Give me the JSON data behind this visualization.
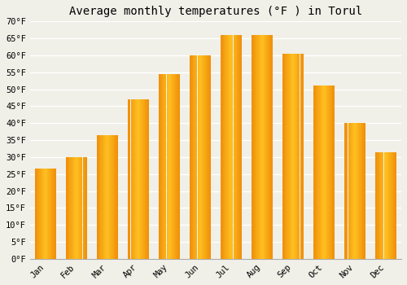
{
  "title": "Average monthly temperatures (°F ) in Torul",
  "months": [
    "Jan",
    "Feb",
    "Mar",
    "Apr",
    "May",
    "Jun",
    "Jul",
    "Aug",
    "Sep",
    "Oct",
    "Nov",
    "Dec"
  ],
  "values": [
    26.5,
    30.0,
    36.5,
    47.0,
    54.5,
    60.0,
    66.0,
    66.0,
    60.5,
    51.0,
    40.0,
    31.5
  ],
  "bar_color_center": "#FFC020",
  "bar_color_edge": "#F0900A",
  "ylim": [
    0,
    70
  ],
  "yticks": [
    0,
    5,
    10,
    15,
    20,
    25,
    30,
    35,
    40,
    45,
    50,
    55,
    60,
    65,
    70
  ],
  "background_color": "#F0EFE8",
  "grid_color": "#FFFFFF",
  "title_fontsize": 10,
  "tick_fontsize": 7.5,
  "bar_width": 0.65
}
